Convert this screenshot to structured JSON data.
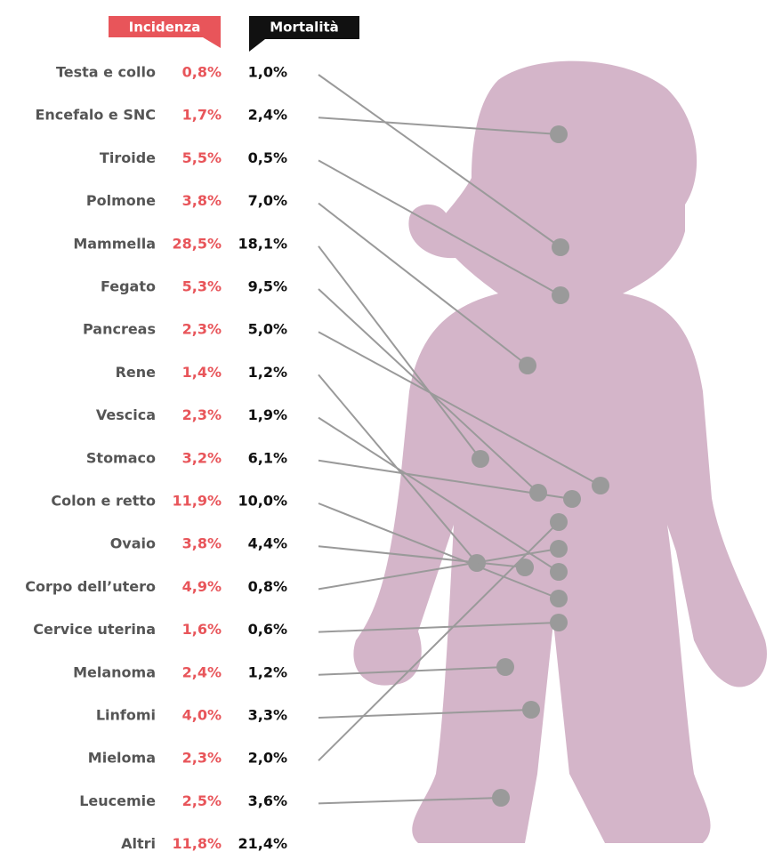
{
  "headers": {
    "incidence": "Incidenza",
    "mortality": "Mortalità"
  },
  "rows": [
    [
      "Testa e collo",
      "0,8%",
      "1,0%"
    ],
    [
      "Encefalo e SNC",
      "1,7%",
      "2,4%"
    ],
    [
      "Tiroide",
      "5,5%",
      "0,5%"
    ],
    [
      "Polmone",
      "3,8%",
      "7,0%"
    ],
    [
      "Mammella",
      "28,5%",
      "18,1%"
    ],
    [
      "Fegato",
      "5,3%",
      "9,5%"
    ],
    [
      "Pancreas",
      "2,3%",
      "5,0%"
    ],
    [
      "Rene",
      "1,4%",
      "1,2%"
    ],
    [
      "Vescica",
      "2,3%",
      "1,9%"
    ],
    [
      "Stomaco",
      "3,2%",
      "6,1%"
    ],
    [
      "Colon e retto",
      "11,9%",
      "10,0%"
    ],
    [
      "Ovaio",
      "3,8%",
      "4,4%"
    ],
    [
      "Corpo dell’utero",
      "4,9%",
      "0,8%"
    ],
    [
      "Cervice uterina",
      "1,6%",
      "0,6%"
    ],
    [
      "Melanoma",
      "2,4%",
      "1,2%"
    ],
    [
      "Linfomi",
      "4,0%",
      "3,3%"
    ],
    [
      "Mieloma",
      "2,3%",
      "2,0%"
    ],
    [
      "Leucemie",
      "2,5%",
      "3,6%"
    ],
    [
      "Altri",
      "11,8%",
      "21,4%"
    ]
  ]
}
